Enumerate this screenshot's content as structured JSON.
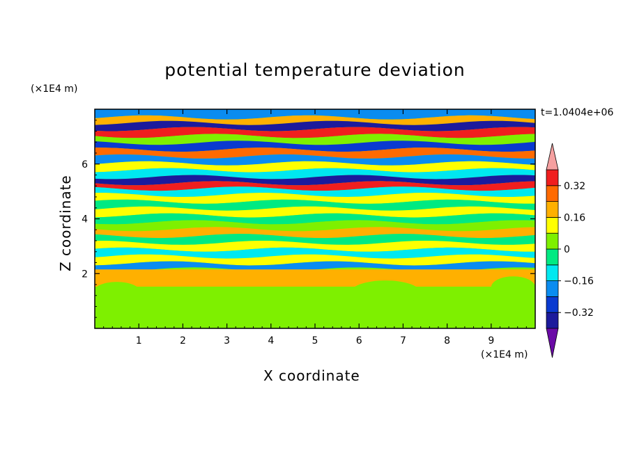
{
  "chart_data": {
    "type": "heatmap",
    "title": "potential temperature deviation",
    "xlabel": "X coordinate",
    "ylabel": "Z coordinate",
    "x_unit": "(×1E4 m)",
    "y_unit": "(×1E4 m)",
    "time_label": "t=1.0404e+06",
    "xlim": [
      0,
      10
    ],
    "ylim": [
      0,
      8
    ],
    "x_ticks": [
      1,
      2,
      3,
      4,
      5,
      6,
      7,
      8,
      9
    ],
    "x_tick_labels": [
      "1",
      "2",
      "3",
      "4",
      "5",
      "6",
      "7",
      "8",
      "9"
    ],
    "y_ticks": [
      2,
      4,
      6
    ],
    "y_tick_labels": [
      "2",
      "4",
      "6"
    ],
    "colorbar": {
      "levels": [
        -0.4,
        -0.32,
        -0.24,
        -0.16,
        -0.08,
        0,
        0.08,
        0.16,
        0.24,
        0.32,
        0.4
      ],
      "tick_labels": [
        "0.32",
        "0.16",
        "0",
        "−0.16",
        "−0.32"
      ],
      "tick_values": [
        0.32,
        0.16,
        0,
        -0.16,
        -0.32
      ],
      "colors": [
        "#6a0aa6",
        "#1c1a9c",
        "#0a3ad0",
        "#0a8cf0",
        "#00e8f0",
        "#00ea82",
        "#7ef000",
        "#ffff00",
        "#ffb000",
        "#ff6a00",
        "#f01e1e",
        "#f5a0a0"
      ]
    },
    "bands": [
      {
        "z": 7.8,
        "v": -0.2
      },
      {
        "z": 7.6,
        "v": 0.2
      },
      {
        "z": 7.4,
        "v": -0.36
      },
      {
        "z": 7.15,
        "v": 0.36
      },
      {
        "z": 6.9,
        "v": 0.0
      },
      {
        "z": 6.65,
        "v": -0.3
      },
      {
        "z": 6.4,
        "v": 0.3
      },
      {
        "z": 6.15,
        "v": -0.2
      },
      {
        "z": 5.9,
        "v": 0.1
      },
      {
        "z": 5.65,
        "v": -0.1
      },
      {
        "z": 5.4,
        "v": -0.36
      },
      {
        "z": 5.2,
        "v": 0.32
      },
      {
        "z": 5.0,
        "v": -0.12
      },
      {
        "z": 4.75,
        "v": 0.15
      },
      {
        "z": 4.5,
        "v": -0.05
      },
      {
        "z": 4.25,
        "v": 0.12
      },
      {
        "z": 4.0,
        "v": -0.06
      },
      {
        "z": 3.75,
        "v": 0.04
      },
      {
        "z": 3.5,
        "v": 0.16
      },
      {
        "z": 3.25,
        "v": -0.06
      },
      {
        "z": 3.0,
        "v": 0.13
      },
      {
        "z": 2.75,
        "v": -0.1
      },
      {
        "z": 2.5,
        "v": 0.1
      },
      {
        "z": 2.25,
        "v": -0.2
      },
      {
        "z": 2.05,
        "v": 0.22
      },
      {
        "z": 1.0,
        "v": 0.02
      }
    ]
  }
}
